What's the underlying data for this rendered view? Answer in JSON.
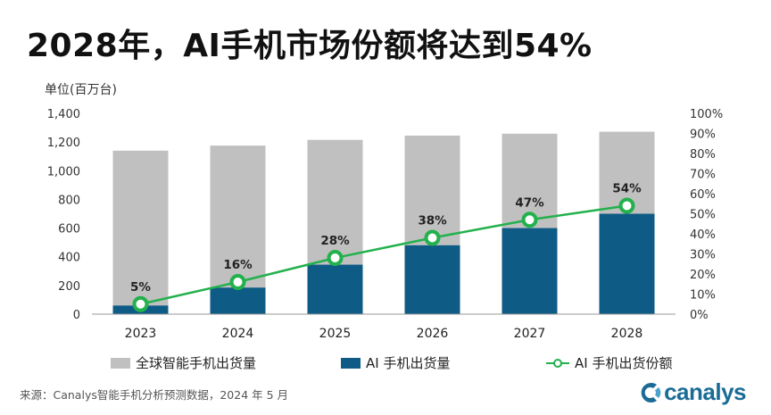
{
  "title": "2028年，AI手机市场份额将达到54%",
  "unit_label": "单位(百万台)",
  "source": "来源：Canalys智能手机分析预测数据，2024 年 5 月",
  "logo_text": "canalys",
  "colors": {
    "total": "#c0c0c0",
    "ai": "#0e5b86",
    "share": "#22b14c"
  },
  "chart_data": {
    "type": "bar",
    "categories": [
      "2023",
      "2024",
      "2025",
      "2026",
      "2027",
      "2028"
    ],
    "series": [
      {
        "name": "全球智能手机出货量",
        "type": "bar",
        "values": [
          1140,
          1175,
          1215,
          1245,
          1258,
          1272
        ]
      },
      {
        "name": "AI 手机出货量",
        "type": "bar",
        "values": [
          60,
          185,
          345,
          480,
          600,
          700
        ]
      },
      {
        "name": "AI 手机出货份额",
        "type": "line",
        "axis": "right",
        "values": [
          5,
          16,
          28,
          38,
          47,
          54
        ],
        "labels": [
          "5%",
          "16%",
          "28%",
          "38%",
          "47%",
          "54%"
        ]
      }
    ],
    "ylim": [
      0,
      1400
    ],
    "y_ticks": [
      "0",
      "200",
      "400",
      "600",
      "800",
      "1,000",
      "1,200",
      "1,400"
    ],
    "y2lim": [
      0,
      100
    ],
    "y2_ticks": [
      "0%",
      "10%",
      "20%",
      "30%",
      "40%",
      "50%",
      "60%",
      "70%",
      "80%",
      "90%",
      "100%"
    ],
    "grid": false,
    "legend_position": "bottom"
  }
}
